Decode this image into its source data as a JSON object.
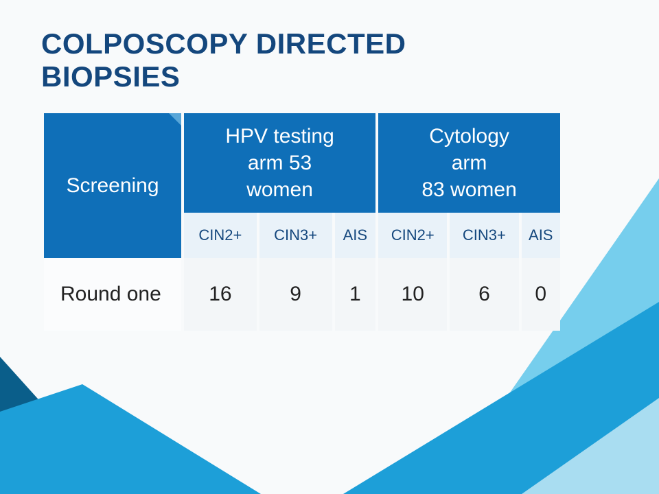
{
  "title": {
    "line1": "COLPOSCOPY DIRECTED",
    "line2": "BIOPSIES",
    "color": "#14477d",
    "fontsize": 42
  },
  "background": {
    "page_bg": "#f8fafb",
    "triangle_colors": [
      "#1d9fd8",
      "#5fc5ea",
      "#0a5e8a",
      "#b9e3f4"
    ]
  },
  "table": {
    "header": {
      "bg": "#0f6fb8",
      "text_color": "#ffffff",
      "fontsize": 30,
      "cells": [
        {
          "lines": [
            "Screening"
          ]
        },
        {
          "lines": [
            "HPV testing",
            "arm 53",
            "women"
          ]
        },
        {
          "lines": [
            "Cytology",
            "arm",
            "83 women"
          ]
        }
      ]
    },
    "subheader": {
      "bg": "#e9f2f9",
      "text_color": "#14477d",
      "fontsize": 22,
      "cells": [
        "CIN2+",
        "CIN3+",
        "AIS",
        "CIN2+",
        "CIN3+",
        "AIS"
      ]
    },
    "row": {
      "bg_label": "#fbfcfd",
      "bg_cell": "#f3f6f8",
      "text_color": "#222222",
      "fontsize": 30,
      "label": "Round one",
      "values": [
        "16",
        "9",
        "1",
        "10",
        "6",
        "0"
      ]
    },
    "corner_accent": {
      "color": "#58a6d8",
      "size": 18
    }
  }
}
